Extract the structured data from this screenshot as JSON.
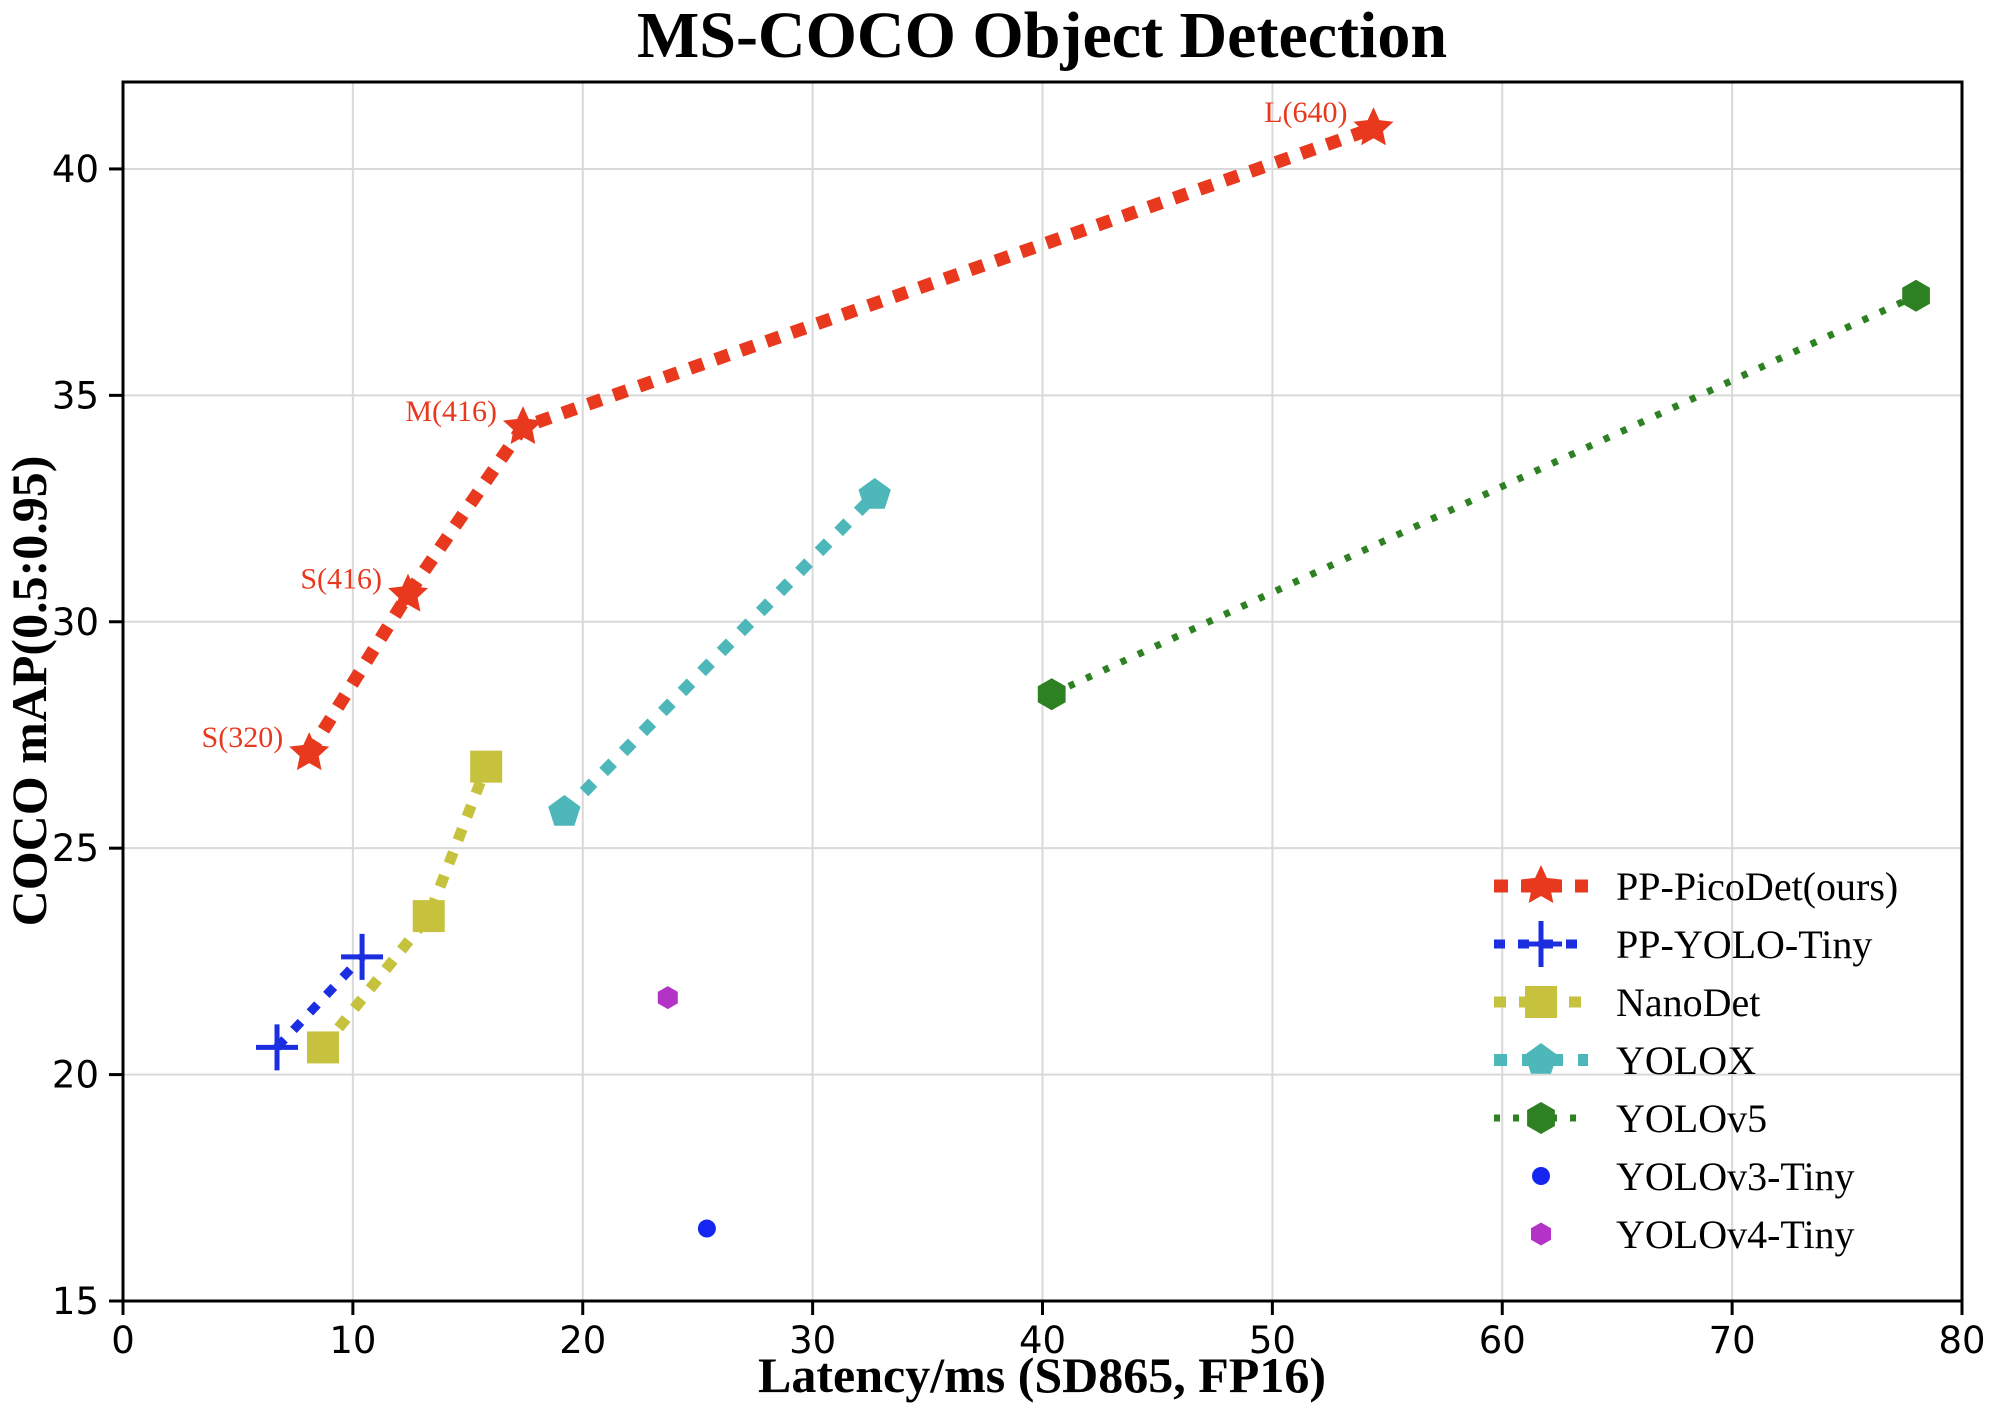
{
  "chart_data": {
    "type": "scatter",
    "title": "MS-COCO Object Detection",
    "xlabel": "Latency/ms (SD865, FP16)",
    "ylabel": "COCO mAP(0.5:0.95)",
    "xlim": [
      0,
      80
    ],
    "ylim": [
      15,
      41.92
    ],
    "xticks": [
      0,
      10,
      20,
      30,
      40,
      50,
      60,
      70,
      80
    ],
    "yticks": [
      15,
      20,
      25,
      30,
      35,
      40
    ],
    "grid": true,
    "grid_color": "#d9d9d9",
    "legend_position": "lower right",
    "series": [
      {
        "name": "PP-PicoDet(ours)",
        "color": "#e8391f",
        "marker": "star",
        "line": "dashed",
        "points": [
          [
            8.1,
            27.1
          ],
          [
            12.4,
            30.6
          ],
          [
            17.4,
            34.3
          ],
          [
            54.4,
            40.9
          ]
        ],
        "point_labels": [
          "S(320)",
          "S(416)",
          "M(416)",
          "L(640)"
        ]
      },
      {
        "name": "PP-YOLO-Tiny",
        "color": "#1b2fe0",
        "marker": "plus",
        "line": "dashed",
        "points": [
          [
            6.7,
            20.6
          ],
          [
            10.4,
            22.6
          ]
        ],
        "point_labels": []
      },
      {
        "name": "NanoDet",
        "color": "#c6c23d",
        "marker": "square",
        "line": "dashed",
        "points": [
          [
            8.7,
            20.6
          ],
          [
            13.3,
            23.5
          ],
          [
            15.8,
            26.8
          ]
        ],
        "point_labels": []
      },
      {
        "name": "YOLOX",
        "color": "#4db7b9",
        "marker": "pentagon",
        "line": "dashed",
        "points": [
          [
            19.2,
            25.8
          ],
          [
            32.7,
            32.8
          ]
        ],
        "point_labels": []
      },
      {
        "name": "YOLOv5",
        "color": "#2e8122",
        "marker": "hexagon",
        "line": "dotted",
        "points": [
          [
            40.4,
            28.4
          ],
          [
            78.0,
            37.2
          ]
        ],
        "point_labels": []
      },
      {
        "name": "YOLOv3-Tiny",
        "color": "#1526f0",
        "marker": "circle",
        "line": "none",
        "points": [
          [
            25.4,
            16.6
          ]
        ],
        "point_labels": []
      },
      {
        "name": "YOLOv4-Tiny",
        "color": "#b233c6",
        "marker": "hexagon-small",
        "line": "none",
        "points": [
          [
            23.7,
            21.7
          ]
        ],
        "point_labels": []
      }
    ]
  }
}
